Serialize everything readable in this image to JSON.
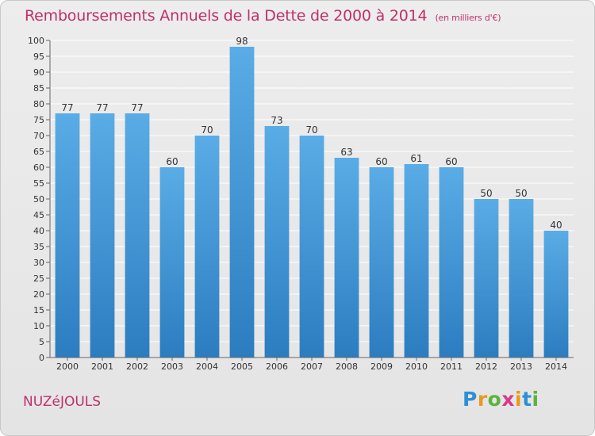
{
  "title": "Remboursements Annuels de la Dette de 2000 à 2014",
  "subtitle": "(en milliers d'€)",
  "commune": "NUZéJOULS",
  "logo": {
    "letters": [
      "P",
      "r",
      "o",
      "x",
      "i",
      "t",
      "i"
    ],
    "colors": [
      "#2e8fd6",
      "#e89a1e",
      "#5ab43c",
      "#d63a8a",
      "#e89a1e",
      "#2e8fd6",
      "#5ab43c"
    ]
  },
  "colors": {
    "bar_top": "#5aace6",
    "bar_bottom": "#2b7dc0",
    "grid": "#ffffff",
    "axis_text": "#333333",
    "title": "#c0306a"
  },
  "chart_data": {
    "type": "bar",
    "categories": [
      "2000",
      "2001",
      "2002",
      "2003",
      "2004",
      "2005",
      "2006",
      "2007",
      "2008",
      "2009",
      "2010",
      "2011",
      "2012",
      "2013",
      "2014"
    ],
    "values": [
      77,
      77,
      77,
      60,
      70,
      98,
      73,
      70,
      63,
      60,
      61,
      60,
      50,
      50,
      40
    ],
    "data_labels": [
      "77",
      "77",
      "77",
      "60",
      "70",
      "98",
      "73",
      "70",
      "63",
      "60",
      "61",
      "60",
      "50",
      "50",
      "40"
    ],
    "ylim": [
      0,
      100
    ],
    "yticks": [
      "0",
      "5",
      "10",
      "15",
      "20",
      "25",
      "30",
      "35",
      "40",
      "45",
      "50",
      "55",
      "60",
      "65",
      "70",
      "75",
      "80",
      "85",
      "90",
      "95",
      "100"
    ],
    "grid": true,
    "legend": "none"
  }
}
